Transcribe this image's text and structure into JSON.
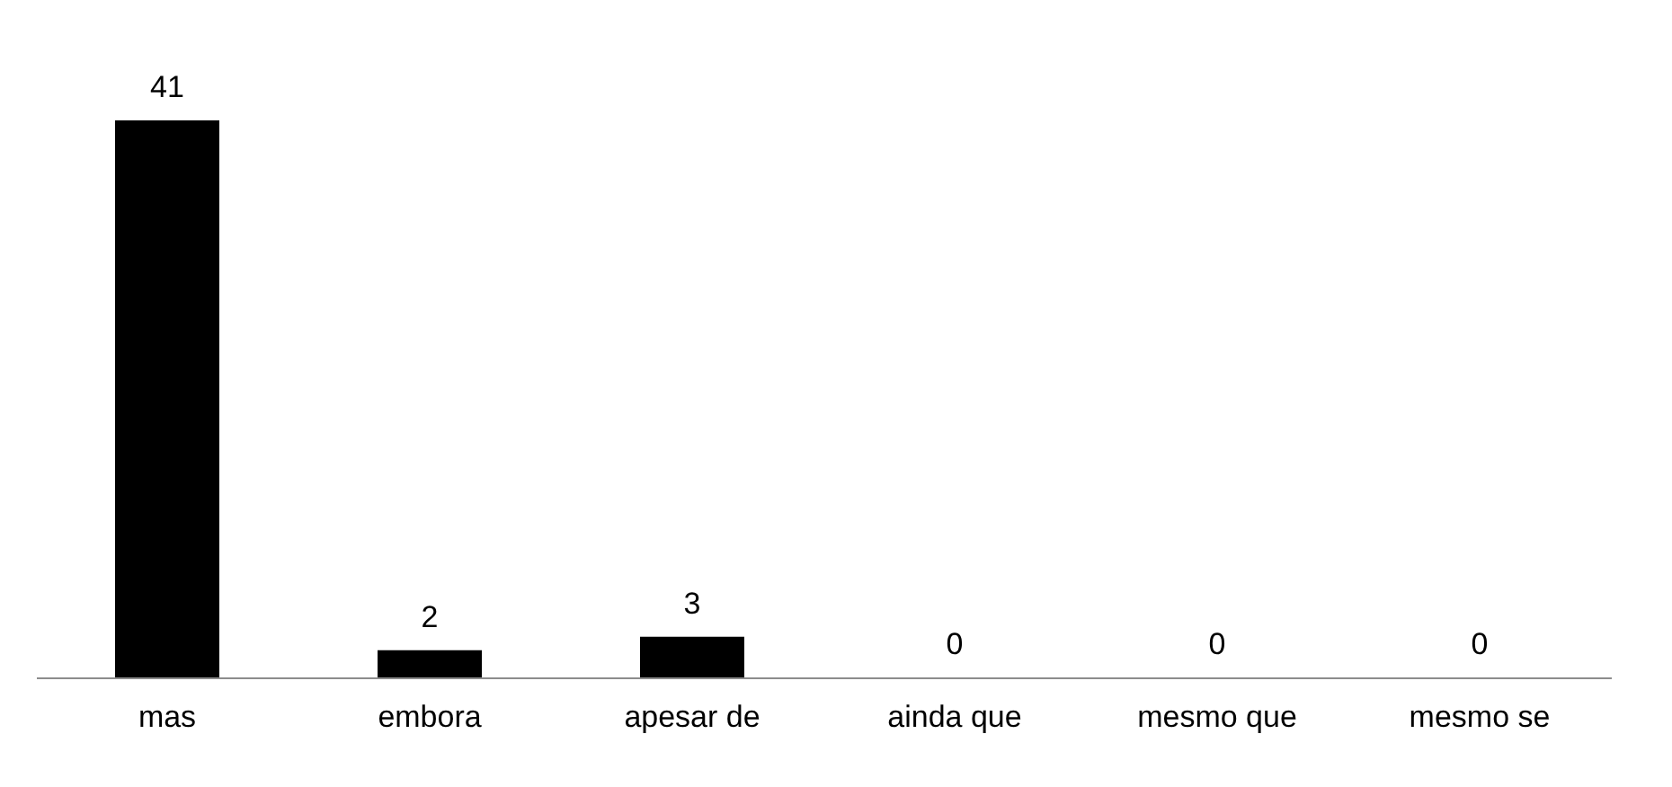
{
  "chart_data": {
    "type": "bar",
    "categories": [
      "mas",
      "embora",
      "apesar de",
      "ainda que",
      "mesmo que",
      "mesmo se"
    ],
    "values": [
      41,
      2,
      3,
      0,
      0,
      0
    ],
    "color": "#000000",
    "data_labels": true,
    "grid": false
  }
}
